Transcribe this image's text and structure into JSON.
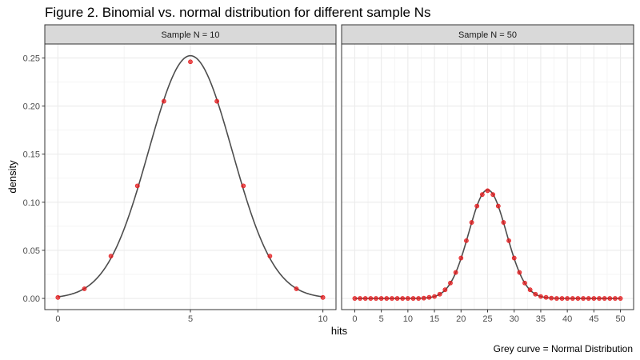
{
  "title": "Figure 2. Binomial vs. normal distribution for different sample Ns",
  "caption": "Grey curve = Normal Distribution",
  "xlabel": "hits",
  "ylabel": "density",
  "colors": {
    "points": "#e41a1c",
    "curve": "#4d4d4d",
    "strip_fill": "#d9d9d9",
    "grid": "#ebebeb",
    "border": "#333333"
  },
  "chart_data": [
    {
      "type": "scatter",
      "facet": "Sample N = 10",
      "n": 10,
      "p": 0.5,
      "xlim": [
        0,
        10
      ],
      "ylim": [
        0,
        0.25
      ],
      "xticks": [
        0,
        5,
        10
      ],
      "yticks": [
        0.0,
        0.05,
        0.1,
        0.15,
        0.2,
        0.25
      ],
      "ytick_labels": [
        "0.00",
        "0.05",
        "0.10",
        "0.15",
        "0.20",
        "0.25"
      ],
      "grid": true,
      "series": [
        {
          "kind": "points",
          "x": [
            0,
            1,
            2,
            3,
            4,
            5,
            6,
            7,
            8,
            9,
            10
          ],
          "y": [
            0.001,
            0.01,
            0.044,
            0.117,
            0.205,
            0.246,
            0.205,
            0.117,
            0.044,
            0.01,
            0.001
          ]
        },
        {
          "kind": "line",
          "mean": 5,
          "sd": 1.581
        }
      ]
    },
    {
      "type": "scatter",
      "facet": "Sample N = 50",
      "n": 50,
      "p": 0.5,
      "xlim": [
        0,
        50
      ],
      "ylim": [
        0,
        0.25
      ],
      "xticks": [
        0,
        5,
        10,
        15,
        20,
        25,
        30,
        35,
        40,
        45,
        50
      ],
      "yticks": [
        0.0,
        0.05,
        0.1,
        0.15,
        0.2,
        0.25
      ],
      "grid": true,
      "series": [
        {
          "kind": "points",
          "x": [
            0,
            1,
            2,
            3,
            4,
            5,
            6,
            7,
            8,
            9,
            10,
            11,
            12,
            13,
            14,
            15,
            16,
            17,
            18,
            19,
            20,
            21,
            22,
            23,
            24,
            25,
            26,
            27,
            28,
            29,
            30,
            31,
            32,
            33,
            34,
            35,
            36,
            37,
            38,
            39,
            40,
            41,
            42,
            43,
            44,
            45,
            46,
            47,
            48,
            49,
            50
          ],
          "y": [
            0,
            0,
            0,
            0,
            0,
            0,
            0,
            0,
            0,
            0,
            0,
            0,
            0,
            0.0003,
            0.0011,
            0.002,
            0.0044,
            0.009,
            0.016,
            0.027,
            0.042,
            0.06,
            0.079,
            0.096,
            0.108,
            0.112,
            0.108,
            0.096,
            0.079,
            0.06,
            0.042,
            0.027,
            0.016,
            0.009,
            0.0044,
            0.002,
            0.0011,
            0.0003,
            0,
            0,
            0,
            0,
            0,
            0,
            0,
            0,
            0,
            0,
            0,
            0,
            0
          ]
        },
        {
          "kind": "line",
          "mean": 25,
          "sd": 3.536
        }
      ]
    }
  ]
}
